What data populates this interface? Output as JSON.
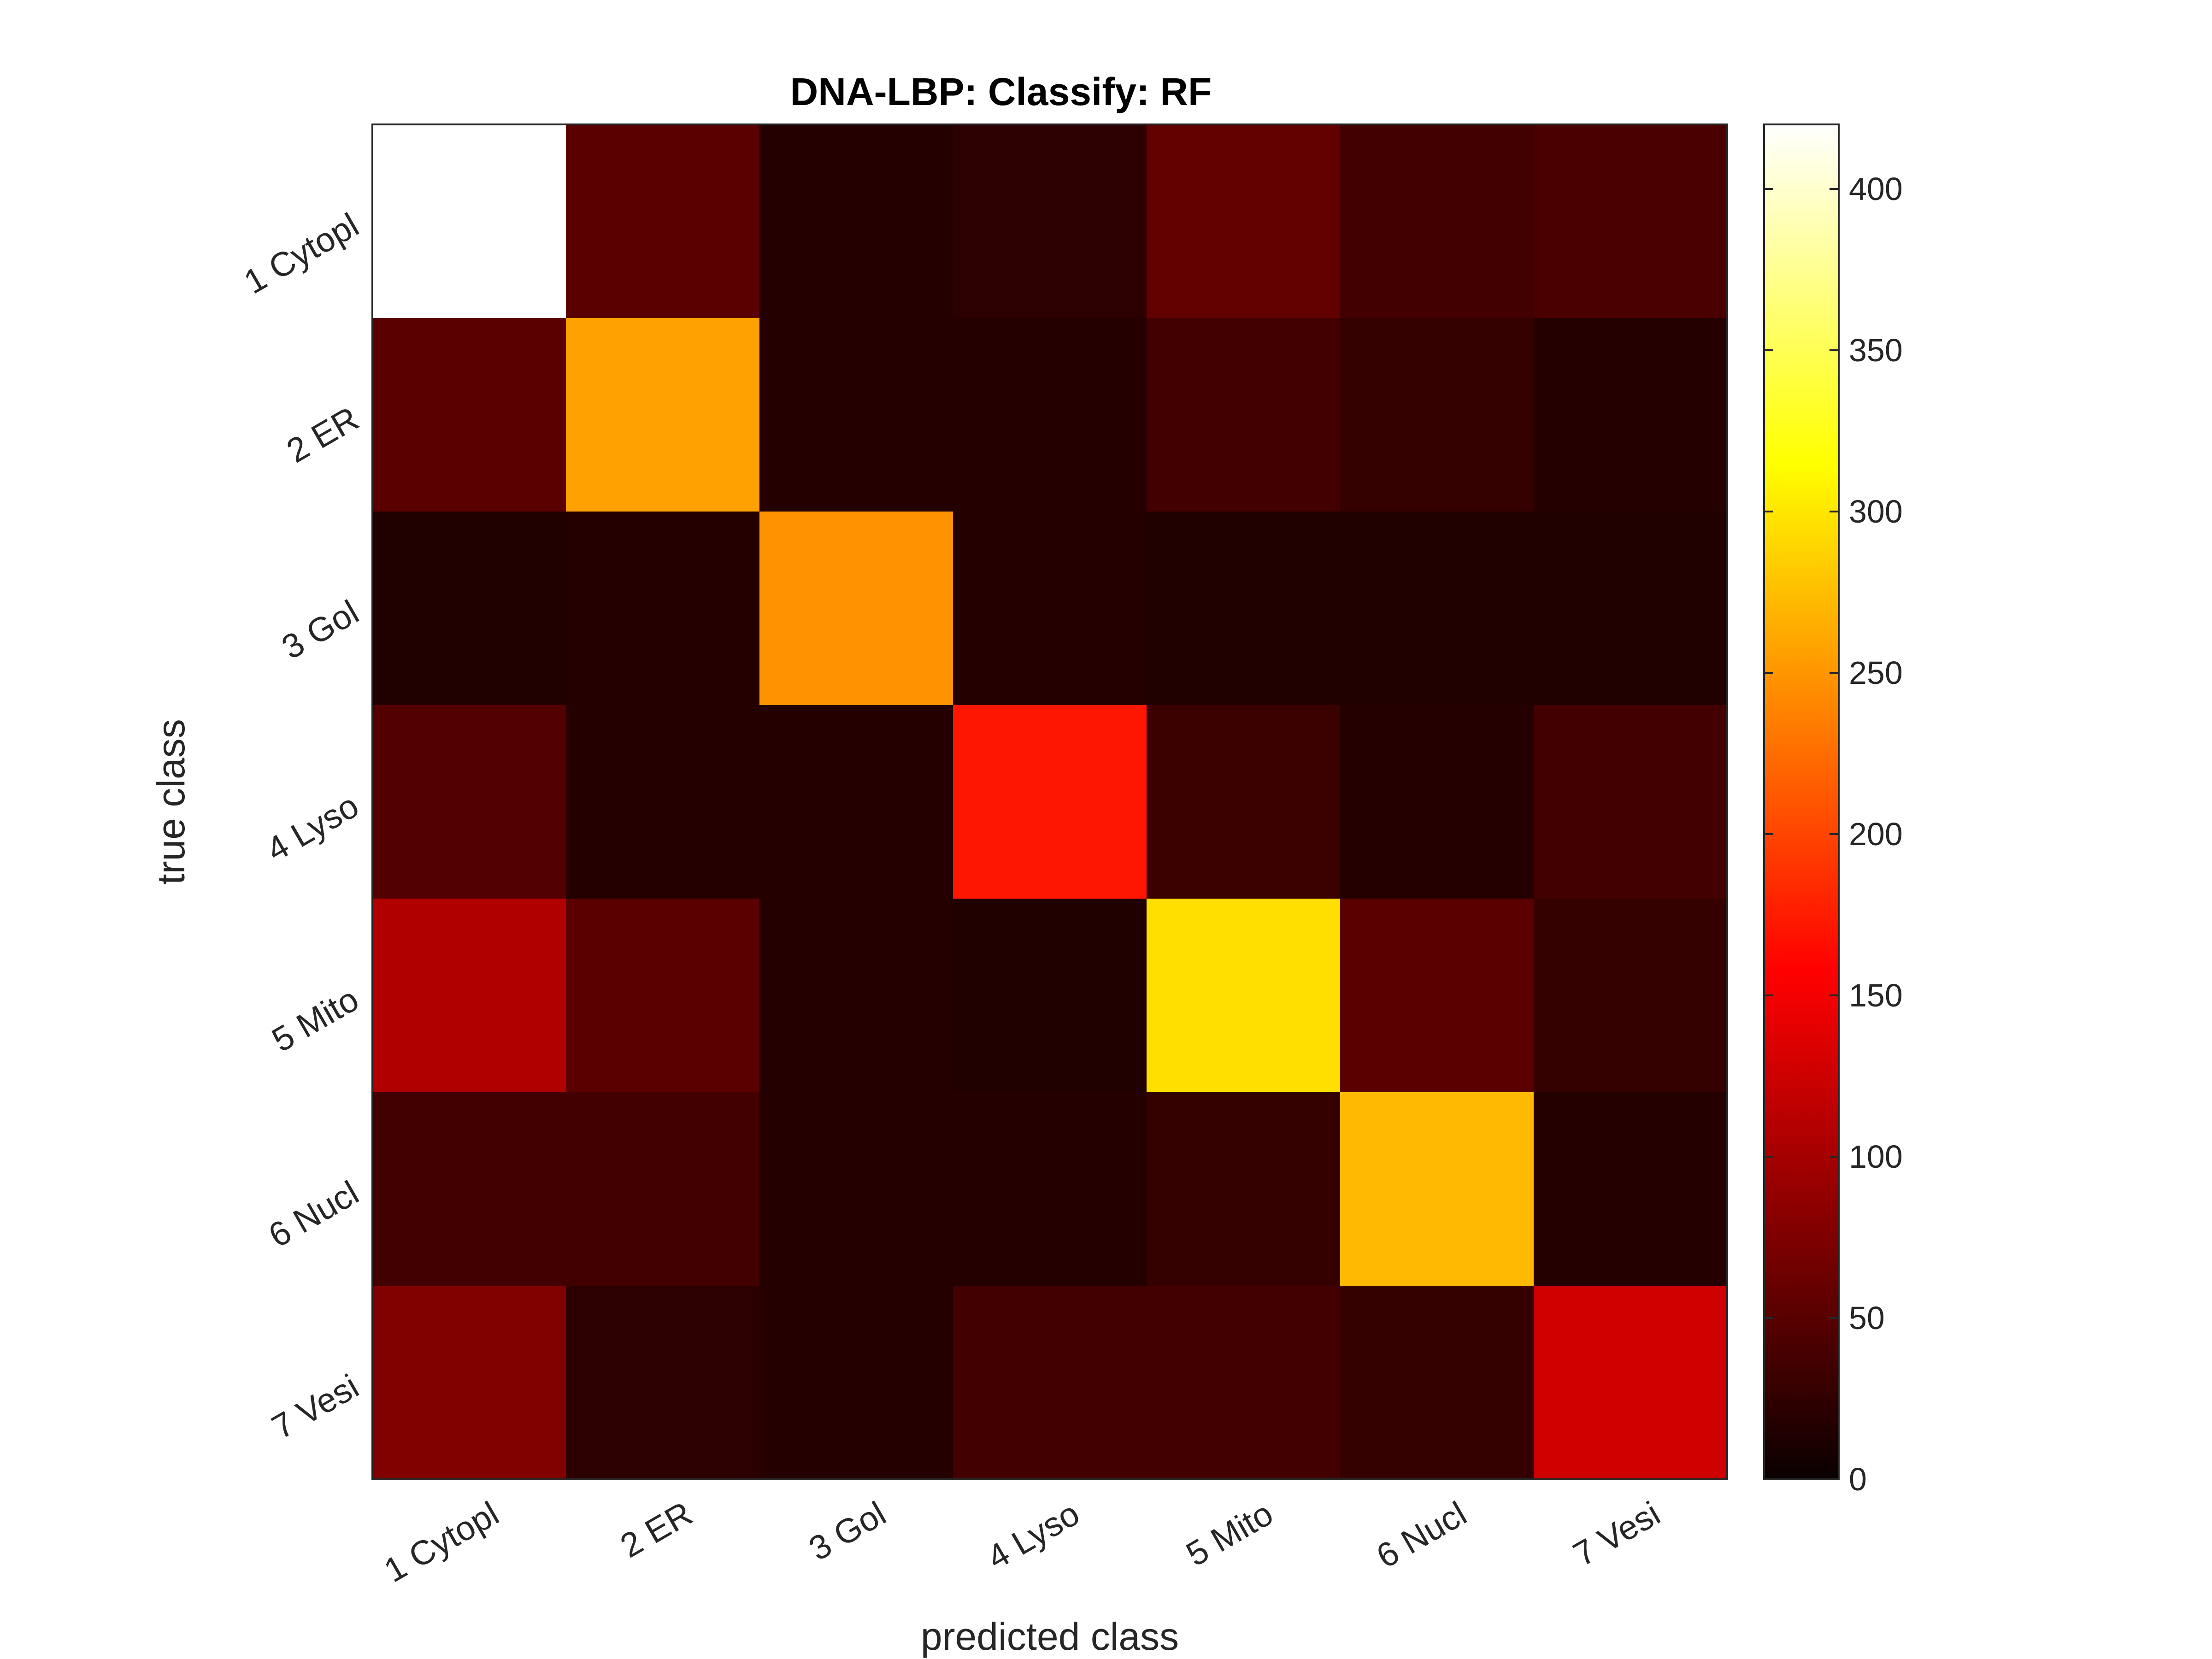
{
  "chart_data": {
    "type": "heatmap",
    "title": "DNA-LBP: Classify: RF",
    "xlabel": "predicted class",
    "ylabel": "true class",
    "x_categories": [
      "1 Cytopl",
      "2 ER",
      "3 Gol",
      "4 Lyso",
      "5 Mito",
      "6 Nucl",
      "7 Vesi"
    ],
    "y_categories": [
      "1 Cytopl",
      "2 ER",
      "3 Gol",
      "4 Lyso",
      "5 Mito",
      "6 Nucl",
      "7 Vesi"
    ],
    "values": [
      [
        420,
        40,
        5,
        10,
        45,
        25,
        30
      ],
      [
        40,
        250,
        5,
        5,
        25,
        15,
        5
      ],
      [
        3,
        5,
        240,
        5,
        3,
        3,
        3
      ],
      [
        35,
        5,
        5,
        160,
        20,
        5,
        25
      ],
      [
        95,
        40,
        5,
        3,
        290,
        40,
        15
      ],
      [
        25,
        25,
        5,
        5,
        15,
        265,
        5
      ],
      [
        65,
        10,
        5,
        25,
        25,
        15,
        115
      ]
    ],
    "colormap": "hot",
    "colorbar": {
      "range": [
        0,
        420
      ],
      "ticks": [
        0,
        50,
        100,
        150,
        200,
        250,
        300,
        350,
        400
      ]
    },
    "grid": false
  }
}
